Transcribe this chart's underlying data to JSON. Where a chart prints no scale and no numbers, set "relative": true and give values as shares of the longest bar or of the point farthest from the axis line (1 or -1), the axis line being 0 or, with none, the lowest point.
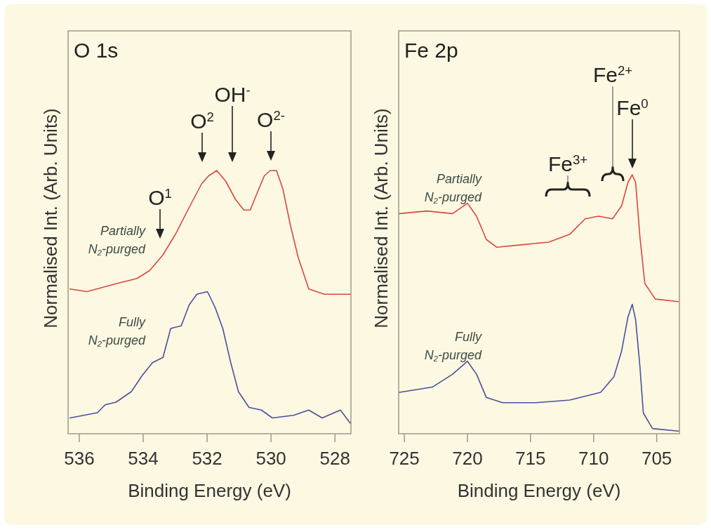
{
  "chart_data": [
    {
      "type": "line",
      "title": "O 1s",
      "xlabel": "Binding Energy (eV)",
      "ylabel": "Normalised Int. (Arb. Units)",
      "relative": true,
      "xlim": [
        536.35,
        527.5
      ],
      "xticks": [
        536,
        534,
        532,
        530,
        528
      ],
      "series": [
        {
          "name": "Partially N$_{2}$-purged",
          "color": "#d9473f",
          "x": [
            536.29,
            535.76,
            534.85,
            534.19,
            533.8,
            533.38,
            532.98,
            532.56,
            532.17,
            531.95,
            531.7,
            531.42,
            531.11,
            530.85,
            530.65,
            530.45,
            530.21,
            530.03,
            529.83,
            529.63,
            529.39,
            529.15,
            528.82,
            528.33,
            527.52
          ],
          "values": [
            0.55,
            0.54,
            0.57,
            0.59,
            0.62,
            0.68,
            0.76,
            0.86,
            0.95,
            0.98,
            1.0,
            0.96,
            0.89,
            0.85,
            0.85,
            0.91,
            0.98,
            1.0,
            1.0,
            0.93,
            0.79,
            0.67,
            0.55,
            0.53,
            0.53
          ]
        },
        {
          "name": "Fully N$_{2}$-purged",
          "color": "#4a4f9e",
          "x": [
            536.29,
            535.43,
            535.19,
            534.85,
            534.37,
            534.04,
            533.71,
            533.38,
            533.14,
            532.81,
            532.56,
            532.32,
            531.99,
            531.75,
            531.51,
            531.26,
            531.02,
            530.69,
            530.3,
            529.96,
            529.3,
            528.82,
            528.4,
            527.83,
            527.52
          ],
          "values": [
            0.06,
            0.08,
            0.11,
            0.12,
            0.16,
            0.22,
            0.27,
            0.29,
            0.4,
            0.41,
            0.49,
            0.53,
            0.54,
            0.48,
            0.4,
            0.27,
            0.16,
            0.1,
            0.09,
            0.06,
            0.07,
            0.09,
            0.06,
            0.09,
            0.04
          ]
        }
      ],
      "annotations": [
        "O$^{1}$",
        "O$^{2}$",
        "OH$^{-}$",
        "O$^{2-}$"
      ]
    },
    {
      "type": "line",
      "title": "Fe 2p",
      "xlabel": "Binding Energy (eV)",
      "ylabel": "Normalised Int. (Arb. Units)",
      "relative": true,
      "xlim": [
        725.45,
        703.2
      ],
      "xticks": [
        725,
        720,
        715,
        710,
        705
      ],
      "series": [
        {
          "name": "Partially N$_{2}$-purged",
          "color": "#d9473f",
          "x": [
            725.39,
            723.22,
            721.17,
            720.0,
            719.28,
            718.5,
            717.67,
            715.61,
            713.56,
            711.89,
            710.67,
            709.61,
            708.5,
            707.78,
            707.28,
            706.94,
            706.67,
            706.33,
            705.94,
            705.11,
            703.28
          ],
          "values": [
            0.85,
            0.86,
            0.85,
            0.89,
            0.84,
            0.75,
            0.72,
            0.73,
            0.74,
            0.77,
            0.83,
            0.84,
            0.83,
            0.88,
            0.97,
            1.0,
            0.97,
            0.76,
            0.58,
            0.52,
            0.51
          ]
        },
        {
          "name": "Fully N$_{2}$-purged",
          "color": "#4a4f9e",
          "x": [
            725.39,
            722.78,
            721.17,
            720.0,
            719.28,
            718.5,
            717.22,
            714.56,
            711.89,
            709.44,
            708.39,
            707.78,
            707.28,
            706.94,
            706.67,
            706.33,
            706.06,
            705.33,
            703.28
          ],
          "values": [
            0.16,
            0.18,
            0.23,
            0.28,
            0.23,
            0.14,
            0.12,
            0.12,
            0.13,
            0.16,
            0.22,
            0.32,
            0.45,
            0.5,
            0.44,
            0.26,
            0.08,
            0.02,
            0.01
          ]
        }
      ],
      "annotations": [
        "Fe$^{3+}$",
        "Fe$^{2+}$",
        "Fe$^{0}$"
      ]
    }
  ]
}
